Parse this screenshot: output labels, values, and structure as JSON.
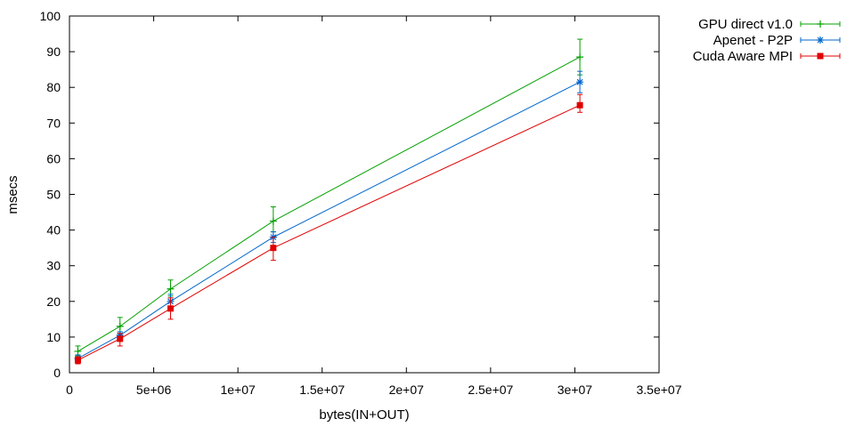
{
  "chart_data": {
    "type": "line",
    "title": "",
    "xlabel": "bytes(IN+OUT)",
    "ylabel": "msecs",
    "xlim": [
      0,
      35000000
    ],
    "ylim": [
      0,
      100
    ],
    "x_ticks": [
      0,
      5000000,
      10000000,
      15000000,
      20000000,
      25000000,
      30000000,
      35000000
    ],
    "x_tick_labels": [
      "0",
      "5e+06",
      "1e+07",
      "1.5e+07",
      "2e+07",
      "2.5e+07",
      "3e+07",
      "3.5e+07"
    ],
    "y_ticks": [
      0,
      10,
      20,
      30,
      40,
      50,
      60,
      70,
      80,
      90,
      100
    ],
    "y_tick_labels": [
      "0",
      "10",
      "20",
      "30",
      "40",
      "50",
      "60",
      "70",
      "80",
      "90",
      "100"
    ],
    "grid": false,
    "legend_position": "top-right outside",
    "series": [
      {
        "name": "GPU direct v1.0",
        "color": "#00a000",
        "marker": "plus",
        "x": [
          500000,
          3000000,
          6000000,
          12100000,
          30300000
        ],
        "y": [
          6.0,
          13.0,
          23.5,
          42.5,
          88.5
        ],
        "err_low": [
          4.8,
          11.0,
          21.5,
          39.5,
          83.5
        ],
        "err_high": [
          7.5,
          15.5,
          26.0,
          46.5,
          93.5
        ]
      },
      {
        "name": "Apenet - P2P",
        "color": "#0066cc",
        "marker": "star",
        "x": [
          500000,
          3000000,
          6000000,
          12100000,
          30300000
        ],
        "y": [
          4.0,
          10.5,
          20.0,
          38.0,
          81.5
        ],
        "err_low": [
          3.0,
          9.0,
          18.5,
          36.5,
          78.5
        ],
        "err_high": [
          5.0,
          11.5,
          22.0,
          39.5,
          84.5
        ]
      },
      {
        "name": "Cuda Aware MPI",
        "color": "#e00000",
        "marker": "square",
        "x": [
          500000,
          3000000,
          6000000,
          12100000,
          30300000
        ],
        "y": [
          3.5,
          9.5,
          18.0,
          35.0,
          75.0
        ],
        "err_low": [
          2.5,
          7.5,
          15.0,
          31.5,
          73.0
        ],
        "err_high": [
          4.5,
          11.0,
          21.0,
          38.0,
          78.0
        ]
      }
    ]
  }
}
